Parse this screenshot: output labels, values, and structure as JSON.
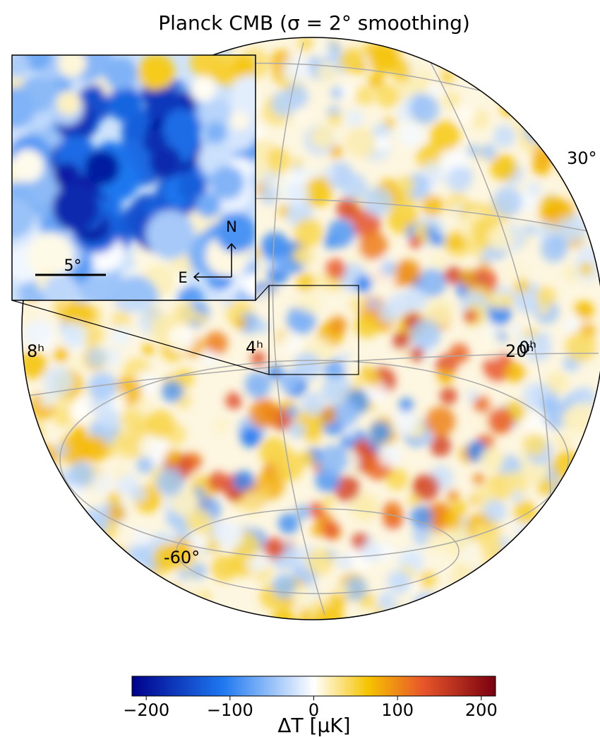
{
  "chart_data": {
    "type": "sky-map",
    "title": "Planck CMB (σ = 2° smoothing)",
    "graticule_labels": [
      "30°",
      "8ʰ",
      "4ʰ",
      "20ʰ",
      "0ʰ",
      "-60°"
    ],
    "inset": {
      "scale_label": "5°",
      "north": "N",
      "east": "E"
    },
    "colorbar": {
      "label": "ΔT [μK]",
      "lim": [
        -217,
        217
      ],
      "ticks": [
        {
          "value": -200,
          "label": "−200"
        },
        {
          "value": -100,
          "label": "−100"
        },
        0,
        100,
        200
      ]
    }
  }
}
